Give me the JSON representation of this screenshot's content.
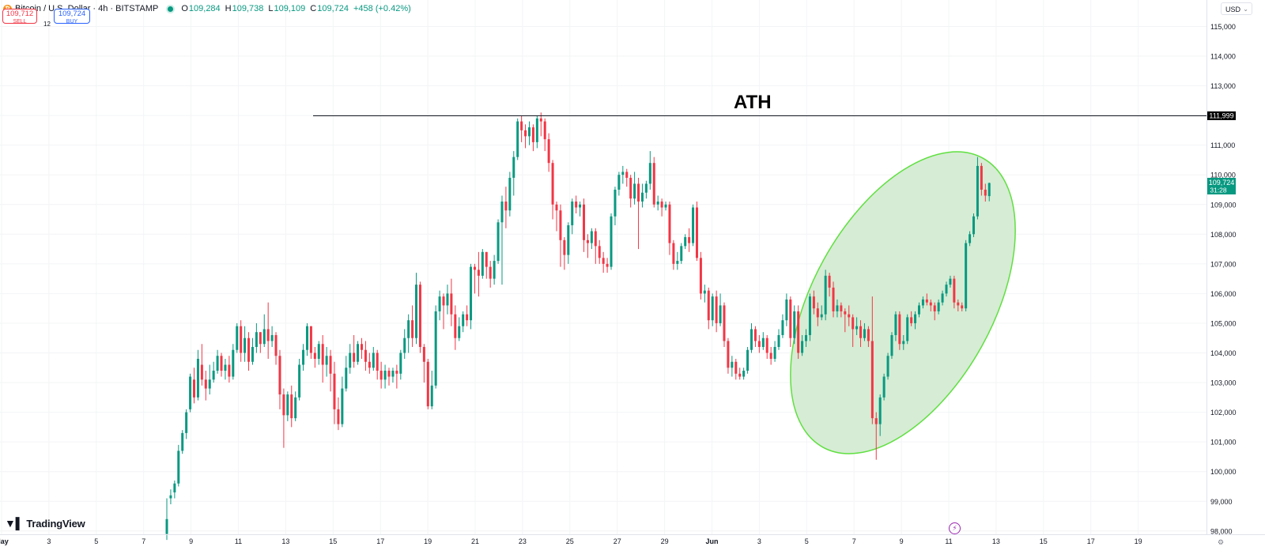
{
  "header": {
    "symbol": "Bitcoin / U.S. Dollar · 4h · BITSTAMP",
    "open_label": "O",
    "open": "109,284",
    "high_label": "H",
    "high": "109,738",
    "low_label": "L",
    "low": "109,109",
    "close_label": "C",
    "close": "109,724",
    "change": "+458 (+0.42%)"
  },
  "trade": {
    "sell_price": "109,712",
    "sell_label": "SELL",
    "spread": "12",
    "buy_price": "109,724",
    "buy_label": "BUY"
  },
  "currency": "USD",
  "brand": "TradingView",
  "colors": {
    "up": "#089981",
    "down": "#f23645",
    "highlight_fill": "#d6ecd4",
    "highlight_stroke": "#5fe040"
  },
  "chart_data": {
    "type": "candlestick",
    "timeframe": "4h",
    "ylim": [
      97900,
      115400
    ],
    "y_ticks": [
      98000,
      99000,
      100000,
      101000,
      102000,
      103000,
      104000,
      105000,
      106000,
      107000,
      108000,
      109000,
      110000,
      111000,
      112000,
      113000,
      114000,
      115000
    ],
    "x_ticks": [
      "May",
      "3",
      "5",
      "7",
      "9",
      "11",
      "13",
      "15",
      "17",
      "19",
      "21",
      "23",
      "25",
      "27",
      "29",
      "Jun",
      "3",
      "5",
      "7",
      "9",
      "11",
      "13",
      "15",
      "17",
      "19"
    ],
    "ath": {
      "label": "ATH",
      "value": 111999,
      "price_label": "111,999"
    },
    "last_price": {
      "value": 109724,
      "label": "109,724",
      "countdown": "31:28"
    },
    "candles": [
      [
        97900,
        98400,
        97700,
        99100
      ],
      [
        99100,
        99200,
        98900,
        99400
      ],
      [
        99300,
        99600,
        99100,
        99700
      ],
      [
        99600,
        100700,
        99500,
        100900
      ],
      [
        100700,
        101300,
        100600,
        101400
      ],
      [
        101300,
        102000,
        101100,
        102100
      ],
      [
        102100,
        103200,
        102000,
        103300
      ],
      [
        103100,
        102500,
        102300,
        103500
      ],
      [
        102500,
        103800,
        102400,
        104100
      ],
      [
        103600,
        103100,
        102900,
        104300
      ],
      [
        103100,
        102800,
        102400,
        103400
      ],
      [
        102800,
        103100,
        102600,
        103600
      ],
      [
        103100,
        103400,
        103000,
        103700
      ],
      [
        103400,
        103900,
        103300,
        104100
      ],
      [
        103900,
        103400,
        103200,
        104000
      ],
      [
        103400,
        103600,
        103100,
        103800
      ],
      [
        103600,
        103200,
        103000,
        103900
      ],
      [
        103200,
        104100,
        103100,
        104300
      ],
      [
        104100,
        104900,
        104000,
        105000
      ],
      [
        104900,
        104000,
        103700,
        105100
      ],
      [
        104000,
        104500,
        103700,
        104900
      ],
      [
        104500,
        103700,
        103400,
        104700
      ],
      [
        103700,
        104200,
        103600,
        104500
      ],
      [
        104200,
        104700,
        104000,
        105000
      ],
      [
        104700,
        104300,
        104000,
        104700
      ],
      [
        104300,
        104800,
        104200,
        105300
      ],
      [
        104800,
        104400,
        103800,
        105700
      ],
      [
        104400,
        104600,
        104200,
        104900
      ],
      [
        104600,
        103900,
        103600,
        104700
      ],
      [
        103900,
        102600,
        102100,
        104100
      ],
      [
        102600,
        101900,
        100800,
        102800
      ],
      [
        101900,
        102600,
        101700,
        102700
      ],
      [
        102600,
        101800,
        101500,
        102900
      ],
      [
        101800,
        102500,
        101700,
        102700
      ],
      [
        102500,
        103600,
        102400,
        103800
      ],
      [
        103600,
        104100,
        103400,
        104300
      ],
      [
        104100,
        104900,
        103900,
        105000
      ],
      [
        104900,
        104000,
        103800,
        104900
      ],
      [
        104000,
        103800,
        103500,
        104200
      ],
      [
        103800,
        104300,
        103600,
        104400
      ],
      [
        104300,
        103600,
        103000,
        104600
      ],
      [
        103600,
        103900,
        103200,
        104200
      ],
      [
        103900,
        103300,
        102700,
        104100
      ],
      [
        103300,
        102100,
        101600,
        103700
      ],
      [
        102100,
        101600,
        101400,
        102500
      ],
      [
        101600,
        102800,
        101500,
        103200
      ],
      [
        102800,
        103500,
        102700,
        103900
      ],
      [
        103500,
        104000,
        103300,
        104300
      ],
      [
        104000,
        103700,
        103500,
        104600
      ],
      [
        103700,
        104300,
        103600,
        104400
      ],
      [
        104300,
        104100,
        103800,
        104500
      ],
      [
        104100,
        103700,
        103400,
        104400
      ],
      [
        103700,
        103500,
        103300,
        104000
      ],
      [
        103500,
        104000,
        103400,
        104200
      ],
      [
        104000,
        103400,
        103100,
        104100
      ],
      [
        103400,
        103100,
        102800,
        103700
      ],
      [
        103100,
        103400,
        102800,
        103600
      ],
      [
        103400,
        103200,
        102900,
        103500
      ],
      [
        103200,
        103400,
        103000,
        103500
      ],
      [
        103400,
        103300,
        102800,
        103600
      ],
      [
        103300,
        104000,
        103100,
        104100
      ],
      [
        104000,
        104500,
        103800,
        104800
      ],
      [
        104500,
        105100,
        104000,
        105300
      ],
      [
        105100,
        104500,
        104200,
        105600
      ],
      [
        104500,
        106300,
        104300,
        106700
      ],
      [
        106300,
        104200,
        104000,
        106400
      ],
      [
        104200,
        103700,
        103000,
        104300
      ],
      [
        103700,
        102200,
        102100,
        103800
      ],
      [
        102200,
        102900,
        102100,
        103400
      ],
      [
        102900,
        105400,
        102800,
        105600
      ],
      [
        105400,
        105900,
        105100,
        106100
      ],
      [
        105900,
        105600,
        104800,
        106000
      ],
      [
        105600,
        106000,
        105300,
        106300
      ],
      [
        106000,
        105300,
        104900,
        106500
      ],
      [
        105300,
        104500,
        104100,
        105600
      ],
      [
        104500,
        104900,
        104400,
        105200
      ],
      [
        104900,
        105300,
        104700,
        105400
      ],
      [
        105300,
        105100,
        104900,
        105600
      ],
      [
        105100,
        106900,
        104800,
        107000
      ],
      [
        106900,
        106800,
        106000,
        107000
      ],
      [
        106800,
        106600,
        105900,
        107400
      ],
      [
        106600,
        107400,
        106500,
        107500
      ],
      [
        107400,
        106900,
        106500,
        107400
      ],
      [
        106900,
        106500,
        106200,
        107100
      ],
      [
        106500,
        107100,
        106300,
        107300
      ],
      [
        107100,
        108400,
        107000,
        108500
      ],
      [
        108400,
        109100,
        106300,
        109300
      ],
      [
        109100,
        108800,
        108200,
        109600
      ],
      [
        108800,
        109900,
        108600,
        110100
      ],
      [
        109900,
        110600,
        109300,
        110800
      ],
      [
        110600,
        111800,
        110500,
        111900
      ],
      [
        111800,
        111500,
        111100,
        112000
      ],
      [
        111500,
        111300,
        110900,
        111700
      ],
      [
        111300,
        111600,
        111000,
        111800
      ],
      [
        111600,
        111100,
        110800,
        111700
      ],
      [
        111100,
        111900,
        110900,
        112000
      ],
      [
        111900,
        111800,
        111300,
        112100
      ],
      [
        111800,
        111200,
        110800,
        111900
      ],
      [
        111200,
        110400,
        110100,
        111400
      ],
      [
        110400,
        109000,
        108500,
        110500
      ],
      [
        109000,
        108800,
        108100,
        109100
      ],
      [
        108800,
        107800,
        106900,
        109000
      ],
      [
        107800,
        107300,
        106800,
        107900
      ],
      [
        107300,
        108300,
        107000,
        108400
      ],
      [
        108300,
        109100,
        108000,
        109200
      ],
      [
        109100,
        108900,
        108700,
        109300
      ],
      [
        108900,
        109000,
        108600,
        109100
      ],
      [
        109000,
        107800,
        107400,
        109200
      ],
      [
        107800,
        107700,
        107200,
        108000
      ],
      [
        107700,
        108100,
        107500,
        108200
      ],
      [
        108100,
        107600,
        107000,
        108200
      ],
      [
        107600,
        107200,
        107000,
        107800
      ],
      [
        107200,
        107000,
        106700,
        107400
      ],
      [
        107000,
        106900,
        106700,
        107200
      ],
      [
        106900,
        108600,
        106800,
        108700
      ],
      [
        108600,
        109500,
        108300,
        109600
      ],
      [
        109500,
        110000,
        109300,
        110100
      ],
      [
        110000,
        110100,
        109700,
        110300
      ],
      [
        110100,
        109900,
        109600,
        110200
      ],
      [
        109900,
        109200,
        108900,
        110000
      ],
      [
        109200,
        109700,
        109000,
        110100
      ],
      [
        109700,
        109100,
        107500,
        109900
      ],
      [
        109100,
        109400,
        108900,
        109700
      ],
      [
        109400,
        109700,
        109200,
        109800
      ],
      [
        109700,
        110400,
        109500,
        110800
      ],
      [
        110400,
        109000,
        108900,
        110600
      ],
      [
        109000,
        109100,
        108800,
        109300
      ],
      [
        109100,
        108900,
        108600,
        109200
      ],
      [
        108900,
        109000,
        108800,
        109100
      ],
      [
        109000,
        107700,
        107300,
        109100
      ],
      [
        107700,
        107000,
        106800,
        107800
      ],
      [
        107000,
        107100,
        106800,
        107400
      ],
      [
        107100,
        107600,
        107000,
        107700
      ],
      [
        107600,
        107900,
        107500,
        108000
      ],
      [
        107900,
        107700,
        107400,
        108200
      ],
      [
        107700,
        108900,
        107600,
        109000
      ],
      [
        108900,
        107200,
        107100,
        109100
      ],
      [
        107200,
        106000,
        105800,
        107400
      ],
      [
        106000,
        106100,
        105700,
        106300
      ],
      [
        106100,
        105100,
        104800,
        106200
      ],
      [
        105100,
        105900,
        104900,
        106000
      ],
      [
        105900,
        105000,
        104700,
        106100
      ],
      [
        105000,
        105600,
        104900,
        106000
      ],
      [
        105600,
        104400,
        104200,
        105700
      ],
      [
        104400,
        103500,
        103300,
        104500
      ],
      [
        103500,
        103700,
        103200,
        103900
      ],
      [
        103700,
        103300,
        103100,
        103800
      ],
      [
        103300,
        103200,
        103100,
        103500
      ],
      [
        103200,
        103400,
        103100,
        103500
      ],
      [
        103400,
        104100,
        103300,
        104200
      ],
      [
        104100,
        104800,
        104000,
        105000
      ],
      [
        104800,
        104400,
        104200,
        104900
      ],
      [
        104400,
        104200,
        104000,
        104600
      ],
      [
        104200,
        104500,
        104100,
        104700
      ],
      [
        104500,
        104000,
        103800,
        104600
      ],
      [
        104000,
        103800,
        103600,
        104200
      ],
      [
        103800,
        104200,
        103700,
        104400
      ],
      [
        104200,
        104600,
        104100,
        104800
      ],
      [
        104600,
        105100,
        104500,
        105300
      ],
      [
        105100,
        105800,
        104900,
        106000
      ],
      [
        105800,
        104500,
        104200,
        105900
      ],
      [
        104500,
        105400,
        104300,
        105600
      ],
      [
        105400,
        104000,
        103800,
        105600
      ],
      [
        104000,
        104400,
        103900,
        104600
      ],
      [
        104400,
        104600,
        104200,
        104800
      ],
      [
        104600,
        105900,
        104400,
        106000
      ],
      [
        105900,
        105500,
        105300,
        106100
      ],
      [
        105500,
        105200,
        104900,
        105700
      ],
      [
        105200,
        105300,
        105100,
        105600
      ],
      [
        105300,
        106600,
        105100,
        106800
      ],
      [
        106600,
        106200,
        105900,
        106700
      ],
      [
        106200,
        105400,
        105200,
        106400
      ],
      [
        105400,
        105600,
        105200,
        105800
      ],
      [
        105600,
        105400,
        105200,
        105700
      ],
      [
        105400,
        105300,
        104700,
        105500
      ],
      [
        105300,
        105200,
        104900,
        105600
      ],
      [
        105200,
        104800,
        104200,
        105300
      ],
      [
        104800,
        104900,
        104600,
        105200
      ],
      [
        104900,
        104500,
        104200,
        105100
      ],
      [
        104500,
        104800,
        104400,
        105000
      ],
      [
        104800,
        104400,
        104200,
        104900
      ],
      [
        104400,
        101800,
        101600,
        105900
      ],
      [
        101800,
        101600,
        100400,
        102000
      ],
      [
        101600,
        102500,
        101200,
        102600
      ],
      [
        102500,
        103200,
        102400,
        103300
      ],
      [
        103200,
        103900,
        103100,
        104000
      ],
      [
        103900,
        104600,
        103800,
        104700
      ],
      [
        104600,
        105300,
        104400,
        105400
      ],
      [
        105300,
        104300,
        104100,
        105400
      ],
      [
        104300,
        104400,
        104100,
        104600
      ],
      [
        104400,
        105200,
        104300,
        105300
      ],
      [
        105200,
        105000,
        104900,
        105400
      ],
      [
        105000,
        105300,
        104800,
        105400
      ],
      [
        105300,
        105600,
        105200,
        105700
      ],
      [
        105600,
        105800,
        105500,
        105900
      ],
      [
        105800,
        105700,
        105600,
        106000
      ],
      [
        105700,
        105600,
        105400,
        105800
      ],
      [
        105600,
        105400,
        105100,
        105700
      ],
      [
        105400,
        105700,
        105300,
        105800
      ],
      [
        105700,
        106000,
        105600,
        106100
      ],
      [
        106000,
        106300,
        105900,
        106400
      ],
      [
        106300,
        106500,
        106200,
        106600
      ],
      [
        106500,
        105700,
        105500,
        106600
      ],
      [
        105700,
        105600,
        105400,
        105800
      ],
      [
        105600,
        105500,
        105400,
        105700
      ],
      [
        105500,
        107700,
        105400,
        107800
      ],
      [
        107700,
        108000,
        107600,
        108100
      ],
      [
        108000,
        108600,
        107900,
        108700
      ],
      [
        108600,
        110300,
        108500,
        110600
      ],
      [
        110300,
        109500,
        109300,
        110400
      ],
      [
        109500,
        109300,
        109100,
        109700
      ],
      [
        109284,
        109724,
        109109,
        109738
      ]
    ]
  }
}
